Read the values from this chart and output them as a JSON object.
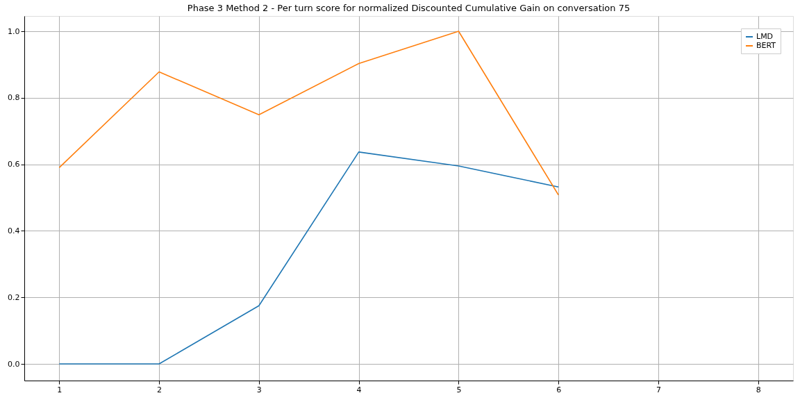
{
  "chart_data": {
    "type": "line",
    "title": "Phase 3 Method 2 - Per turn score for normalized Discounted Cumulative Gain on conversation 75",
    "x": [
      1,
      2,
      3,
      4,
      5,
      6
    ],
    "series": [
      {
        "name": "LMD",
        "color": "#1f77b4",
        "values": [
          0.0,
          0.0,
          0.175,
          0.637,
          0.595,
          0.532
        ]
      },
      {
        "name": "BERT",
        "color": "#ff7f0e",
        "values": [
          0.59,
          0.878,
          0.749,
          0.903,
          1.0,
          0.508
        ]
      }
    ],
    "xlim": [
      0.65,
      8.35
    ],
    "xticks": [
      1,
      2,
      3,
      4,
      5,
      6,
      7,
      8
    ],
    "ylim": [
      -0.05,
      1.046
    ],
    "yticks": [
      {
        "value": 0,
        "label": "0.0"
      },
      {
        "value": 0.2,
        "label": "0.2"
      },
      {
        "value": 0.4,
        "label": "0.4"
      },
      {
        "value": 0.6,
        "label": "0.6"
      },
      {
        "value": 0.8,
        "label": "0.8"
      },
      {
        "value": 1,
        "label": "1.0"
      }
    ],
    "grid": true,
    "legend": "top right",
    "line_style": "solid",
    "marker": "none"
  }
}
